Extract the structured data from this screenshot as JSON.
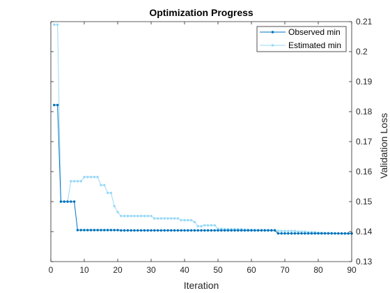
{
  "chart_data": {
    "type": "line",
    "title": "Optimization Progress",
    "xlabel": "Iteration",
    "ylabel": "Validation Loss",
    "xlim": [
      0,
      90
    ],
    "ylim": [
      0.13,
      0.21
    ],
    "x_ticks": [
      0,
      10,
      20,
      30,
      40,
      50,
      60,
      70,
      80,
      90
    ],
    "y_ticks": [
      0.13,
      0.14,
      0.15,
      0.16,
      0.17,
      0.18,
      0.19,
      0.2,
      0.21
    ],
    "y_tick_labels": [
      "0.13",
      "0.14",
      "0.15",
      "0.16",
      "0.17",
      "0.18",
      "0.19",
      "0.2",
      "0.21"
    ],
    "y_axis_side": "right",
    "grid": false,
    "legend_position": "top-right",
    "series": [
      {
        "name": "Observed min",
        "color": "#0072BD",
        "x": [
          1,
          2,
          3,
          4,
          5,
          6,
          7,
          8,
          9,
          10,
          11,
          12,
          13,
          14,
          15,
          16,
          17,
          18,
          19,
          20,
          21,
          22,
          23,
          24,
          25,
          26,
          27,
          28,
          29,
          30,
          31,
          32,
          33,
          34,
          35,
          36,
          37,
          38,
          39,
          40,
          41,
          42,
          43,
          44,
          45,
          46,
          47,
          48,
          49,
          50,
          51,
          52,
          53,
          54,
          55,
          56,
          57,
          58,
          59,
          60,
          61,
          62,
          63,
          64,
          65,
          66,
          67,
          68,
          69,
          70,
          71,
          72,
          73,
          74,
          75,
          76,
          77,
          78,
          79,
          80,
          81,
          82,
          83,
          84,
          85,
          86,
          87,
          88,
          89,
          90
        ],
        "values": [
          0.1822,
          0.1822,
          0.15,
          0.15,
          0.15,
          0.15,
          0.15,
          0.1405,
          0.1405,
          0.1405,
          0.1405,
          0.1405,
          0.1405,
          0.1405,
          0.1405,
          0.1405,
          0.1405,
          0.1405,
          0.1405,
          0.1405,
          0.1404,
          0.1404,
          0.1404,
          0.1404,
          0.1404,
          0.1404,
          0.1404,
          0.1404,
          0.1404,
          0.1404,
          0.1404,
          0.1404,
          0.1404,
          0.1404,
          0.1404,
          0.1404,
          0.1404,
          0.1404,
          0.1404,
          0.1404,
          0.1404,
          0.1404,
          0.1404,
          0.1404,
          0.1404,
          0.1404,
          0.1404,
          0.1404,
          0.1404,
          0.1404,
          0.1404,
          0.1404,
          0.1404,
          0.1404,
          0.1404,
          0.1404,
          0.1404,
          0.1404,
          0.1404,
          0.1404,
          0.1404,
          0.1404,
          0.1404,
          0.1404,
          0.1404,
          0.1404,
          0.1404,
          0.1394,
          0.1394,
          0.1394,
          0.1394,
          0.1394,
          0.1394,
          0.1394,
          0.1394,
          0.1394,
          0.1394,
          0.1394,
          0.1394,
          0.1394,
          0.1394,
          0.1394,
          0.1394,
          0.1394,
          0.1394,
          0.1394,
          0.1394,
          0.1394,
          0.1394,
          0.1394
        ]
      },
      {
        "name": "Estimated min",
        "color": "#99D9F7",
        "x": [
          1,
          2,
          3,
          4,
          5,
          6,
          7,
          8,
          9,
          10,
          11,
          12,
          13,
          14,
          15,
          16,
          17,
          18,
          19,
          20,
          21,
          22,
          23,
          24,
          25,
          26,
          27,
          28,
          29,
          30,
          31,
          32,
          33,
          34,
          35,
          36,
          37,
          38,
          39,
          40,
          41,
          42,
          43,
          44,
          45,
          46,
          47,
          48,
          49,
          50,
          51,
          52,
          53,
          54,
          55,
          56,
          57,
          58,
          59,
          60,
          61,
          62,
          63,
          64,
          65,
          66,
          67,
          68,
          69,
          70,
          71,
          72,
          73,
          74,
          75,
          76,
          77,
          78,
          79,
          80,
          81,
          82,
          83,
          84,
          85,
          86,
          87,
          88,
          89,
          90
        ],
        "values": [
          0.209,
          0.209,
          0.15,
          0.15,
          0.15,
          0.1568,
          0.1568,
          0.1568,
          0.1568,
          0.1582,
          0.1582,
          0.1582,
          0.1582,
          0.1582,
          0.1555,
          0.1555,
          0.1529,
          0.1529,
          0.1485,
          0.1465,
          0.1452,
          0.1452,
          0.1452,
          0.1452,
          0.1452,
          0.1452,
          0.1452,
          0.1452,
          0.1452,
          0.1452,
          0.1444,
          0.1444,
          0.1444,
          0.1444,
          0.1444,
          0.1444,
          0.1444,
          0.1444,
          0.1438,
          0.1438,
          0.1438,
          0.1438,
          0.1432,
          0.1418,
          0.1418,
          0.1421,
          0.1421,
          0.1421,
          0.1421,
          0.1409,
          0.1409,
          0.1408,
          0.1408,
          0.1408,
          0.1408,
          0.1408,
          0.1408,
          0.1406,
          0.1406,
          0.1406,
          0.1405,
          0.1405,
          0.1405,
          0.1405,
          0.1405,
          0.1405,
          0.1405,
          0.1402,
          0.1402,
          0.1402,
          0.1402,
          0.1402,
          0.1402,
          0.14,
          0.14,
          0.14,
          0.1398,
          0.1398,
          0.1398,
          0.1396,
          0.1396,
          0.1395,
          0.1395,
          0.1395,
          0.1394,
          0.1394,
          0.1393,
          0.1393,
          0.1393,
          0.1393
        ]
      }
    ]
  }
}
